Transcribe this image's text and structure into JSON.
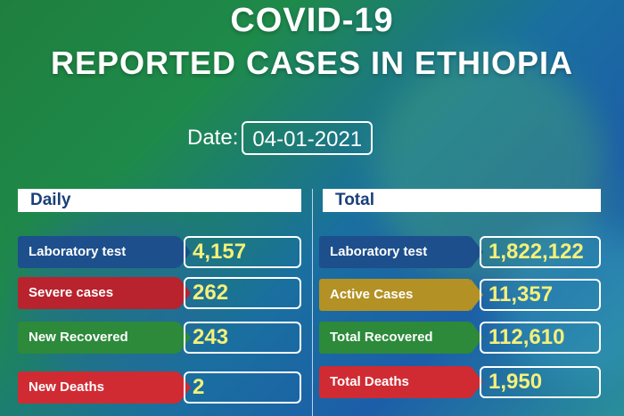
{
  "title_line1": "COVID-19",
  "title_line2": "REPORTED CASES IN ETHIOPIA",
  "date": {
    "label": "Date:",
    "value": "04-01-2021"
  },
  "daily": {
    "header": "Daily",
    "rows": [
      {
        "label": "Laboratory test",
        "value": "4,157",
        "color": "#1d4f8c"
      },
      {
        "label": "Severe cases",
        "value": "262",
        "color": "#b8232e"
      },
      {
        "label": "New Recovered",
        "value": "243",
        "color": "#2c8a3a"
      },
      {
        "label": "New Deaths",
        "value": "2",
        "color": "#d02b33"
      }
    ]
  },
  "total": {
    "header": "Total",
    "rows": [
      {
        "label": "Laboratory test",
        "value": "1,822,122",
        "color": "#1d4f8c"
      },
      {
        "label": "Active Cases",
        "value": "11,357",
        "color": "#b39124"
      },
      {
        "label": "Total Recovered",
        "value": "112,610",
        "color": "#2c8a3a"
      },
      {
        "label": "Total Deaths",
        "value": "1,950",
        "color": "#d02b33"
      }
    ]
  },
  "colors": {
    "value_text": "#f5f07a",
    "header_text": "#1a3f7a"
  }
}
